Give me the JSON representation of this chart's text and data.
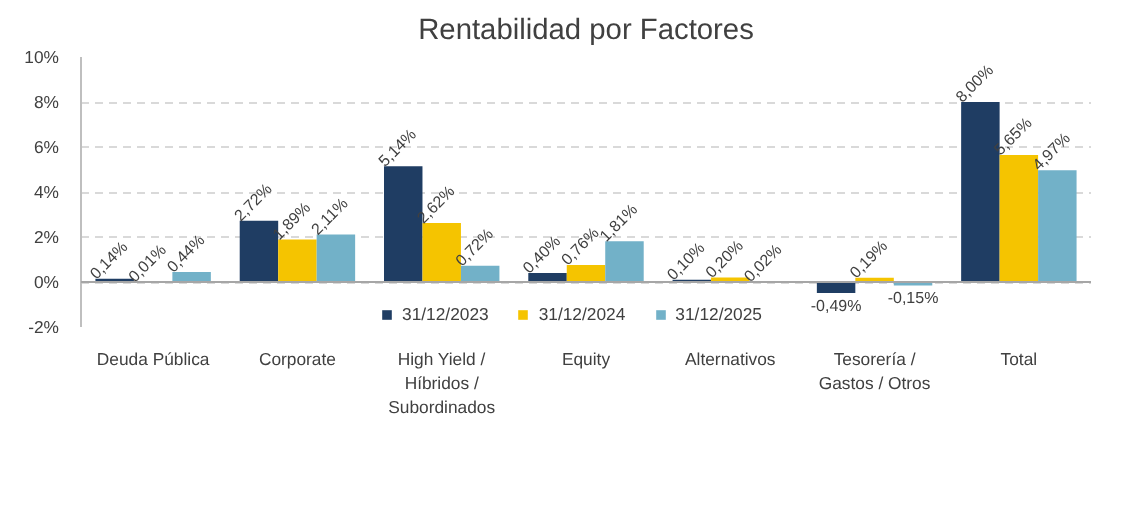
{
  "chart_data": {
    "type": "bar",
    "title": "Rentabilidad por Factores",
    "categories": [
      "Deuda Pública",
      "Corporate",
      "High Yield /\nHíbridos /\nSubordinados",
      "Equity",
      "Alternativos",
      "Tesorería /\nGastos / Otros",
      "Total"
    ],
    "series": [
      {
        "name": "31/12/2023",
        "color": "#1f3d63",
        "values": [
          0.14,
          2.72,
          5.14,
          0.4,
          0.1,
          -0.49,
          8.0
        ],
        "value_labels": [
          "0,14%",
          "2,72%",
          "5,14%",
          "0,40%",
          "0,10%",
          "-0,49%",
          "8,00%"
        ]
      },
      {
        "name": "31/12/2024",
        "color": "#f5c400",
        "values": [
          0.01,
          1.89,
          2.62,
          0.76,
          0.2,
          0.19,
          5.65
        ],
        "value_labels": [
          "0,01%",
          "1,89%",
          "2,62%",
          "0,76%",
          "0,20%",
          "0,19%",
          "5,65%"
        ]
      },
      {
        "name": "31/12/2025",
        "color": "#72b1c8",
        "values": [
          0.44,
          2.11,
          0.72,
          1.81,
          0.02,
          -0.15,
          4.97
        ],
        "value_labels": [
          "0,44%",
          "2,11%",
          "0,72%",
          "1,81%",
          "0,02%",
          "-0,15%",
          "4,97%"
        ]
      }
    ],
    "ylim": [
      -2,
      10
    ],
    "yticks": [
      {
        "value": -2,
        "label": "-2%"
      },
      {
        "value": 0,
        "label": "0%"
      },
      {
        "value": 2,
        "label": "2%"
      },
      {
        "value": 4,
        "label": "4%"
      },
      {
        "value": 6,
        "label": "6%"
      },
      {
        "value": 8,
        "label": "8%"
      },
      {
        "value": 10,
        "label": "10%"
      }
    ],
    "grid": "y",
    "legend": "bottom"
  }
}
